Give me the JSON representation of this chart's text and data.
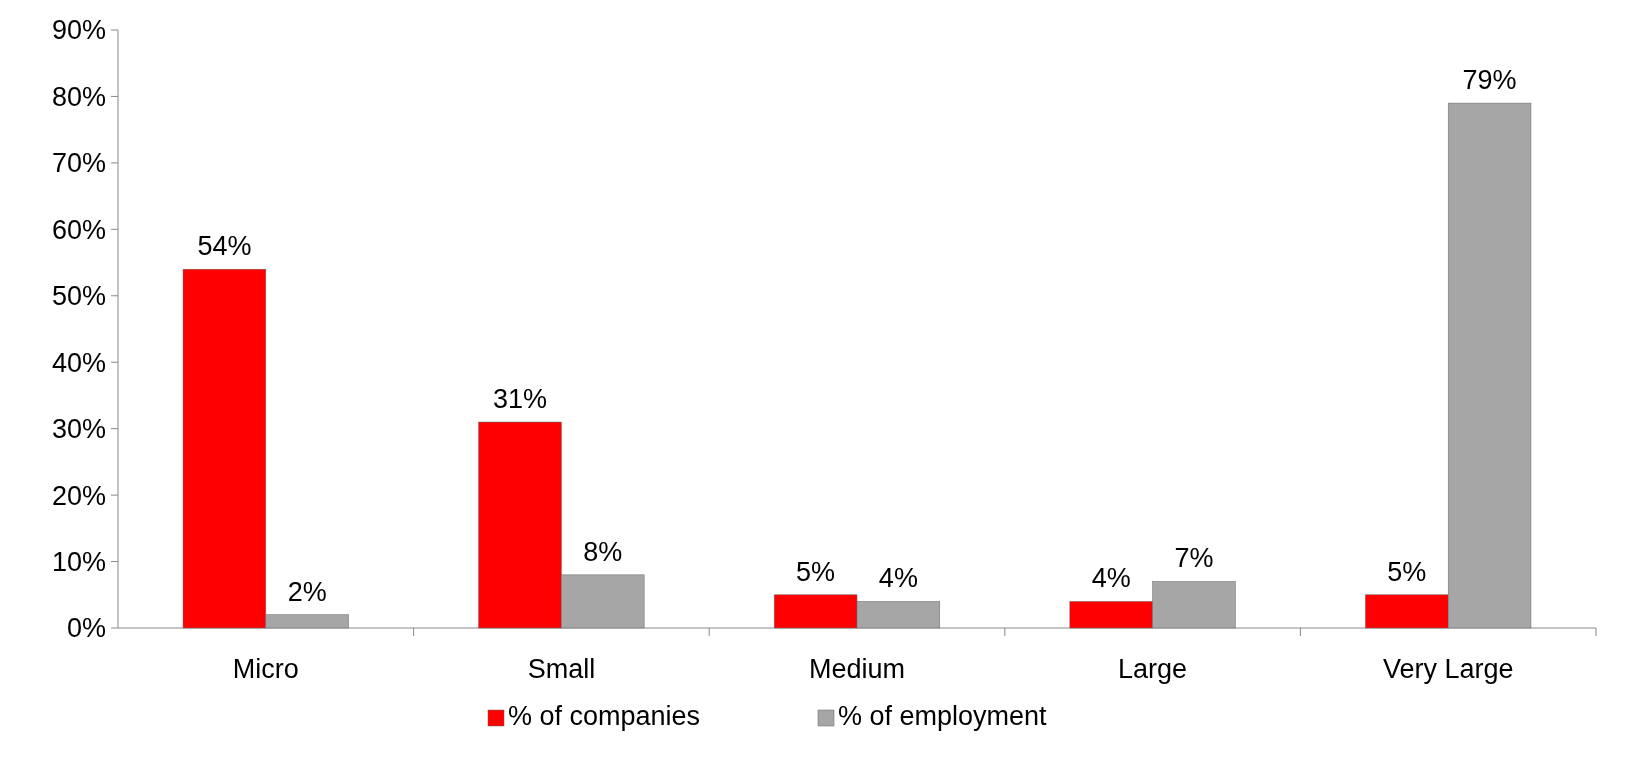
{
  "chart_data": {
    "type": "bar",
    "categories": [
      "Micro",
      "Small",
      "Medium",
      "Large",
      "Very Large"
    ],
    "series": [
      {
        "name": "% of companies",
        "color": "#ff0000",
        "values": [
          54,
          31,
          5,
          4,
          5
        ],
        "value_labels": [
          "54%",
          "31%",
          "5%",
          "4%",
          "5%"
        ]
      },
      {
        "name": "% of employment",
        "color": "#a6a6a6",
        "values": [
          2,
          8,
          4,
          7,
          79
        ],
        "value_labels": [
          "2%",
          "8%",
          "4%",
          "7%",
          "79%"
        ]
      }
    ],
    "ylim": [
      0,
      90
    ],
    "yticks": [
      {
        "value": 0,
        "label": "0%"
      },
      {
        "value": 10,
        "label": "10%"
      },
      {
        "value": 20,
        "label": "20%"
      },
      {
        "value": 30,
        "label": "30%"
      },
      {
        "value": 40,
        "label": "40%"
      },
      {
        "value": 50,
        "label": "50%"
      },
      {
        "value": 60,
        "label": "60%"
      },
      {
        "value": 70,
        "label": "70%"
      },
      {
        "value": 80,
        "label": "80%"
      },
      {
        "value": 90,
        "label": "90%"
      }
    ],
    "legend": "bottom",
    "grid": false
  }
}
